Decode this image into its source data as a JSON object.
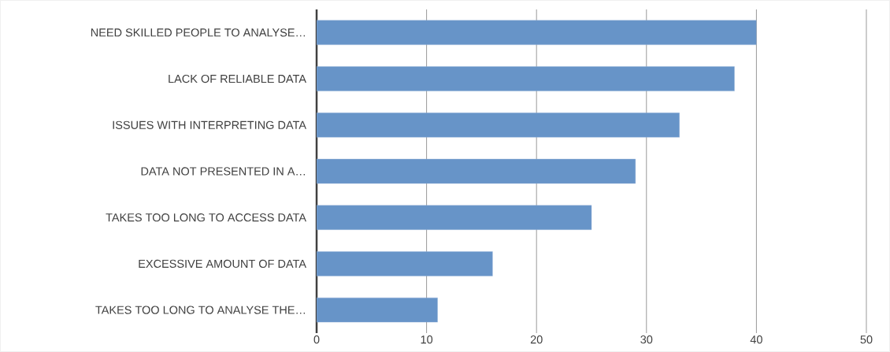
{
  "chart_data": {
    "type": "bar",
    "orientation": "horizontal",
    "categories": [
      "NEED SKILLED PEOPLE TO ANALYSE…",
      "LACK OF RELIABLE DATA",
      "ISSUES WITH INTERPRETING DATA",
      "DATA NOT PRESENTED IN A…",
      "TAKES TOO LONG TO ACCESS DATA",
      "EXCESSIVE AMOUNT OF DATA",
      "TAKES TOO LONG TO ANALYSE THE…"
    ],
    "values": [
      40,
      38,
      33,
      29,
      25,
      16,
      11
    ],
    "color": "#6794c8",
    "xlim": [
      0,
      50
    ],
    "xticks": [
      0,
      10,
      20,
      30,
      40,
      50
    ],
    "grid": "x"
  }
}
